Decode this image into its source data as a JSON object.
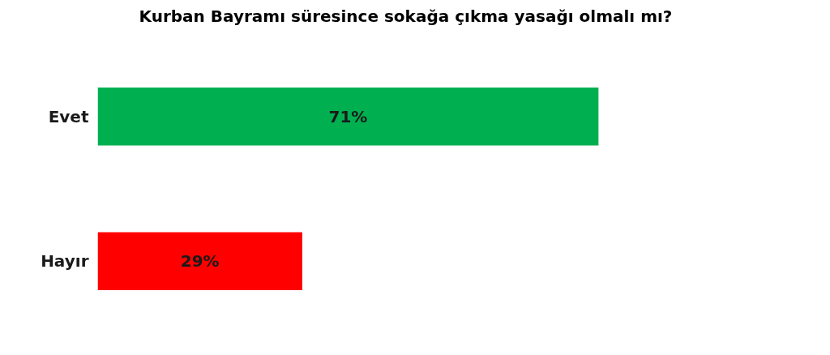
{
  "chart_data": {
    "type": "bar",
    "orientation": "horizontal",
    "title": "Kurban Bayramı süresince sokağa çıkma yasağı olmalı mı?",
    "categories": [
      "Evet",
      "Hayır"
    ],
    "values": [
      71,
      29
    ],
    "colors": [
      "#00b050",
      "#ff0000"
    ],
    "value_labels": [
      "71%",
      "29%"
    ],
    "tick_labels": "y"
  }
}
